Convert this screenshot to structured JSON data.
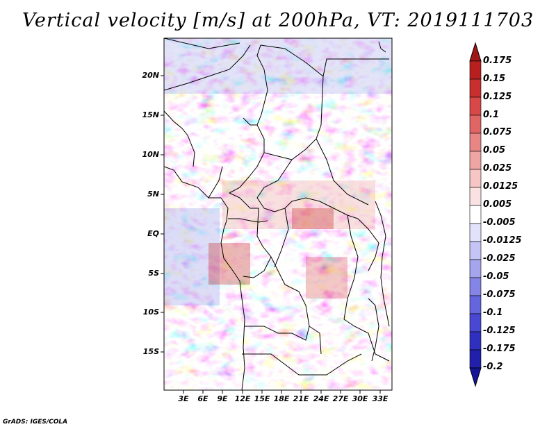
{
  "title": "Vertical velocity [m/s] at 200hPa, VT: 2019111703",
  "footer": "GrADS: IGES/COLA",
  "map": {
    "lat_labels": [
      "20N",
      "15N",
      "10N",
      "5N",
      "EQ",
      "5S",
      "10S",
      "15S"
    ],
    "lon_labels": [
      "3E",
      "6E",
      "9E",
      "12E",
      "15E",
      "18E",
      "21E",
      "24E",
      "27E",
      "30E",
      "33E"
    ]
  },
  "colorbar": {
    "labels": [
      "0.175",
      "0.15",
      "0.125",
      "0.1",
      "0.075",
      "0.05",
      "0.025",
      "0.0125",
      "0.005",
      "-0.005",
      "-0.0125",
      "-0.025",
      "-0.05",
      "-0.075",
      "-0.1",
      "-0.125",
      "-0.175",
      "-0.2"
    ],
    "colors": [
      "#a01515",
      "#b82020",
      "#c83030",
      "#d84848",
      "#e06565",
      "#e88585",
      "#f0a5a5",
      "#f6c5c5",
      "#fbe2e2",
      "#ffffff",
      "#e2e2fb",
      "#c5c5f5",
      "#a5a5ee",
      "#8585e6",
      "#6565de",
      "#4848d2",
      "#3030c0",
      "#2020aa",
      "#15159a"
    ]
  }
}
